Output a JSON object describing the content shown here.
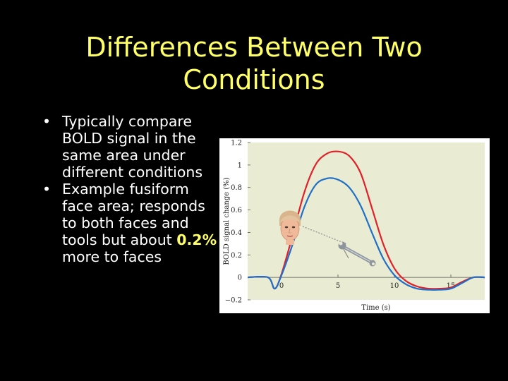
{
  "slide": {
    "title_line1": "Differences Between Two",
    "title_line2": "Conditions",
    "bullet1": "Typically compare BOLD signal in the same area under different conditions",
    "bullet2_pre": "Example fusiform face area; responds to both faces and tools but about ",
    "bullet2_highlight": "0.2%",
    "bullet2_post": " more to faces",
    "colors": {
      "background": "#000000",
      "title": "#ffff66",
      "text": "#ffffff",
      "highlight": "#ffff66"
    }
  },
  "figure": {
    "icons": [
      "face-icon",
      "wrench-icon"
    ],
    "colors": {
      "plot_background": "#e9ecd2",
      "face_series": "#e0202a",
      "tool_series": "#1f6fc8",
      "pointer": "#8a8a8a"
    }
  },
  "chart_data": {
    "type": "line",
    "title": "",
    "xlabel": "Time (s)",
    "ylabel": "BOLD signal change (%)",
    "xlim": [
      -3,
      18
    ],
    "ylim": [
      -0.2,
      1.2
    ],
    "x_ticks": [
      "0",
      "5",
      "10",
      "15"
    ],
    "y_ticks": [
      "−0.2",
      "0",
      "0.2",
      "0.4",
      "0.6",
      "0.8",
      "1",
      "1.2"
    ],
    "y_tick_values": [
      -0.2,
      0,
      0.2,
      0.4,
      0.6,
      0.8,
      1.0,
      1.2
    ],
    "x_tick_values": [
      0,
      5,
      10,
      15
    ],
    "grid": false,
    "legend": "none (series marked with a face icon and a wrench icon)",
    "series": [
      {
        "marker": "face",
        "x": [
          -3,
          -1.2,
          -0.6,
          0,
          1,
          2,
          3,
          4,
          5,
          6,
          7,
          8,
          9,
          10,
          11,
          12,
          13,
          14,
          15,
          16,
          17,
          18
        ],
        "y": [
          0,
          0,
          -0.1,
          0.03,
          0.38,
          0.75,
          1.0,
          1.1,
          1.12,
          1.08,
          0.93,
          0.62,
          0.3,
          0.08,
          -0.03,
          -0.08,
          -0.1,
          -0.1,
          -0.09,
          -0.04,
          0,
          0
        ]
      },
      {
        "marker": "tool",
        "x": [
          -3,
          -1.2,
          -0.6,
          0,
          1,
          2,
          3,
          4,
          5,
          6,
          7,
          8,
          9,
          10,
          11,
          12,
          13,
          14,
          15,
          16,
          17,
          18
        ],
        "y": [
          0,
          0,
          -0.1,
          0.02,
          0.3,
          0.62,
          0.82,
          0.88,
          0.87,
          0.8,
          0.64,
          0.4,
          0.17,
          0.02,
          -0.06,
          -0.1,
          -0.11,
          -0.11,
          -0.1,
          -0.05,
          0,
          0
        ]
      }
    ]
  }
}
